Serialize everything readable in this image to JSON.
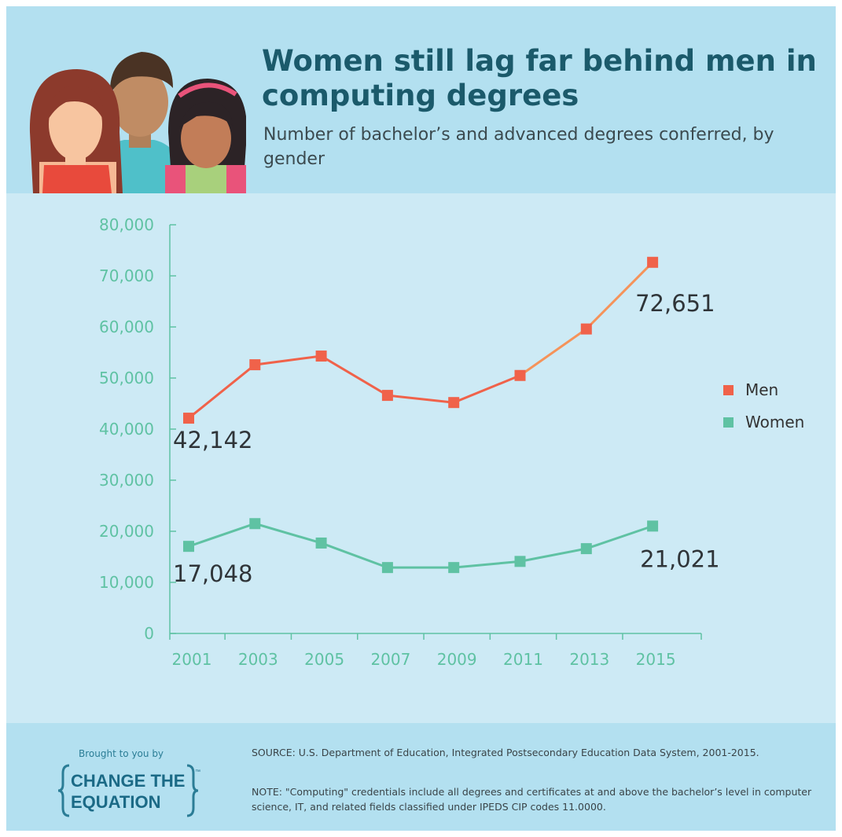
{
  "title": "Women still lag far behind men in computing degrees",
  "subtitle": "Number of bachelor’s and advanced degrees conferred, by gender",
  "colors": {
    "men": "#f0624a",
    "men_recent": "#f5935a",
    "women": "#5fc2a3",
    "axis": "#5fc2a3"
  },
  "chart_data": {
    "type": "line",
    "title": "Women still lag far behind men in computing degrees",
    "subtitle": "Number of bachelor’s and advanced degrees conferred, by gender",
    "x": [
      2001,
      2003,
      2005,
      2007,
      2009,
      2011,
      2013,
      2015
    ],
    "x_tick_labels": [
      "2001",
      "2003",
      "2005",
      "2007",
      "2009",
      "2011",
      "2013",
      "2015"
    ],
    "y_ticks": [
      0,
      10000,
      20000,
      30000,
      40000,
      50000,
      60000,
      70000,
      80000
    ],
    "y_tick_labels": [
      "0",
      "10,000",
      "20,000",
      "30,000",
      "40,000",
      "50,000",
      "60,000",
      "70,000",
      "80,000"
    ],
    "ylim": [
      0,
      80000
    ],
    "grid": false,
    "legend_position": "right",
    "series": [
      {
        "name": "Men",
        "values": [
          42142,
          52600,
          54300,
          46600,
          45200,
          50500,
          59600,
          72651
        ]
      },
      {
        "name": "Women",
        "values": [
          17048,
          21500,
          17700,
          12900,
          12900,
          14100,
          16600,
          21021
        ]
      }
    ],
    "annotations": [
      {
        "series": "Men",
        "index": 0,
        "text": "42,142"
      },
      {
        "series": "Men",
        "index": 7,
        "text": "72,651"
      },
      {
        "series": "Women",
        "index": 0,
        "text": "17,048"
      },
      {
        "series": "Women",
        "index": 7,
        "text": "21,021"
      }
    ]
  },
  "legend": [
    {
      "label": "Men"
    },
    {
      "label": "Women"
    }
  ],
  "footer": {
    "brought_by": "Brought to you by",
    "logo_line1": "CHANGE THE",
    "logo_line2": "EQUATION",
    "logo_tm": "™",
    "source": "SOURCE: U.S. Department of Education, Integrated Postsecondary Education Data System, 2001-2015.",
    "note": "NOTE: \"Computing\" credentials include all degrees and certificates at and above the bachelor’s level in computer science, IT, and related fields classified under IPEDS CIP codes 11.0000."
  }
}
